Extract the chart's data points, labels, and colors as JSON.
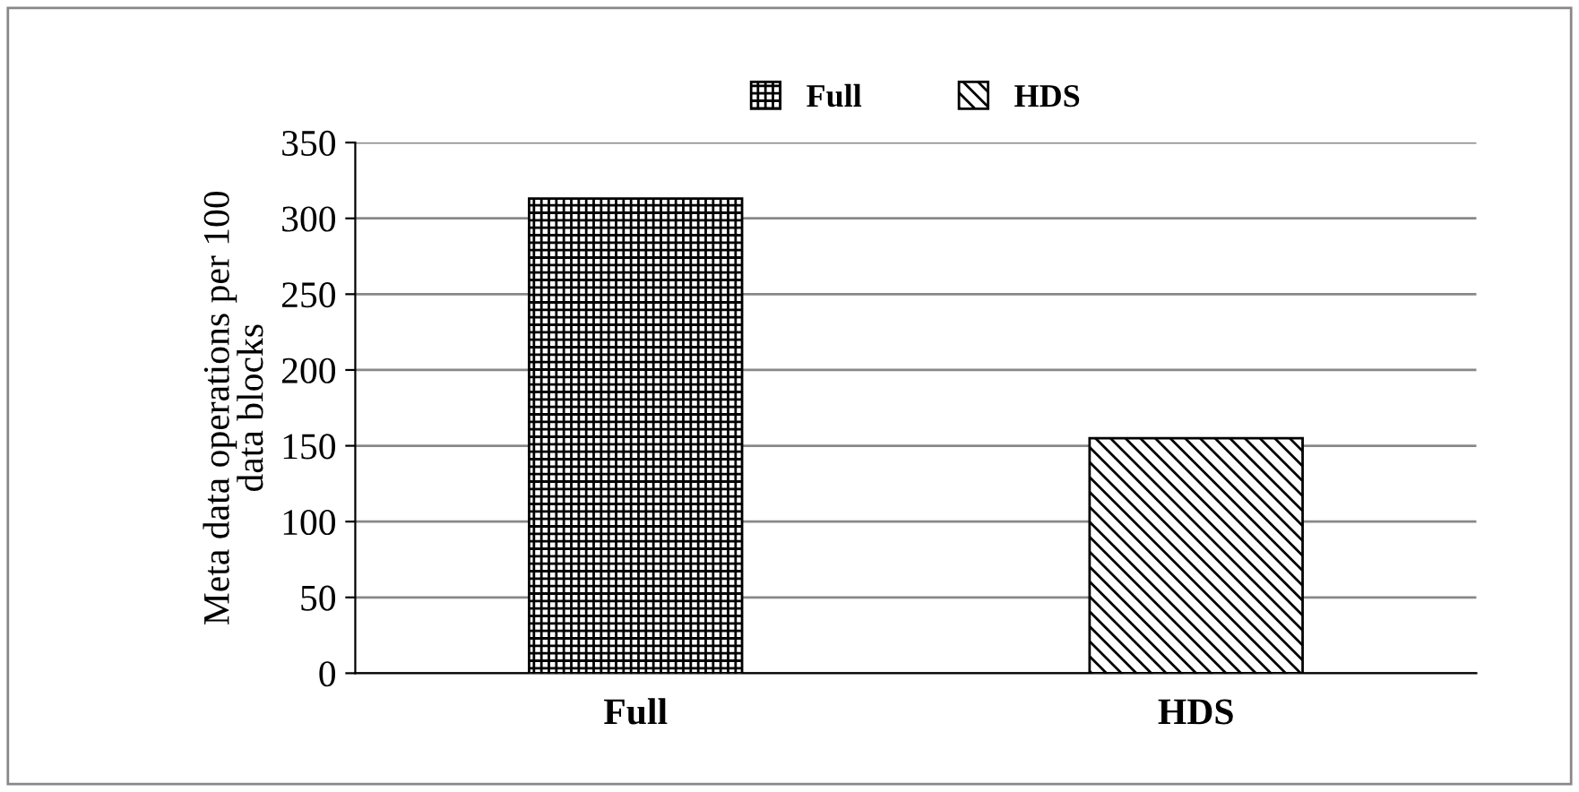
{
  "chart_data": {
    "type": "bar",
    "categories": [
      "Full",
      "HDS"
    ],
    "ylabel": "Meta data operations per 100\ndata blocks",
    "series": [
      {
        "name": "Full",
        "color": "#000000",
        "values": [
          313,
          null
        ]
      },
      {
        "name": "HDS",
        "color": "#000000",
        "values": [
          null,
          155
        ]
      }
    ],
    "ylim": [
      0,
      350
    ],
    "yticks": [
      0,
      50,
      100,
      150,
      200,
      250,
      300,
      350
    ],
    "grid": "y",
    "legend": "top"
  }
}
